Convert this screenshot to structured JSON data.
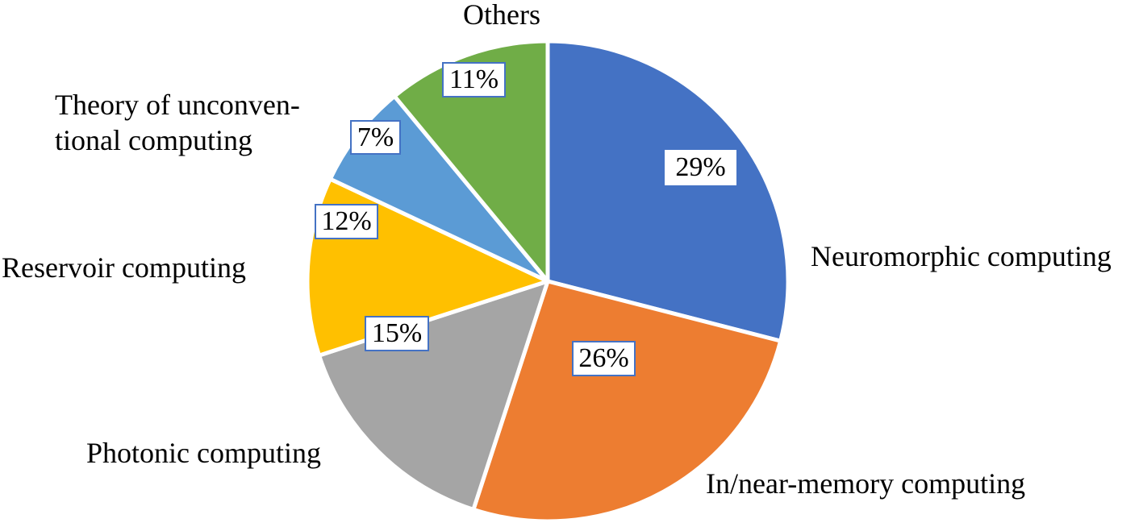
{
  "chart_data": {
    "type": "pie",
    "title": "",
    "categories": [
      "Neuromorphic computing",
      "In/near-memory computing",
      "Photonic computing",
      "Reservoir computing",
      "Theory of unconventional computing",
      "Others"
    ],
    "values": [
      29,
      26,
      15,
      12,
      7,
      11
    ],
    "unit": "%",
    "colors": [
      "#4472c4",
      "#ed7d31",
      "#a5a5a5",
      "#ffc000",
      "#5b9bd5",
      "#70ad47"
    ],
    "start_angle": "12 o'clock, clockwise",
    "legend": "none (data labels outside slices)"
  },
  "labels": {
    "neuromorphic": "Neuromorphic computing",
    "inmemory": "In/near-memory computing",
    "photonic": "Photonic computing",
    "reservoir": "Reservoir computing",
    "theory_line1": "Theory of unconven-",
    "theory_line2": "tional computing",
    "others": "Others"
  },
  "value_labels": {
    "neuromorphic": "29%",
    "inmemory": "26%",
    "photonic": "15%",
    "reservoir": "12%",
    "theory": "7%",
    "others": "11%"
  }
}
